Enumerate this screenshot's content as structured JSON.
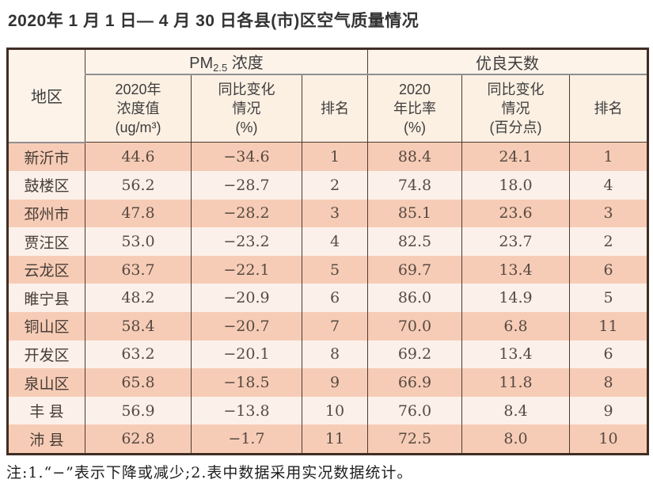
{
  "title": "2020年 1 月 1 日— 4 月 30 日各县(市)区空气质量情况",
  "table": {
    "region_header": "地区",
    "pm_group": {
      "prefix": "PM",
      "sub": "2.5",
      "suffix": " 浓度"
    },
    "good_days_group": "优良天数",
    "sub_headers": {
      "pm_value": "2020年\n浓度值\n(ug/m³)",
      "pm_change": "同比变化\n情况\n(%)",
      "pm_rank": "排名",
      "gd_rate": "2020\n年比率\n(%)",
      "gd_change": "同比变化\n情况\n(百分点)",
      "gd_rank": "排名"
    },
    "rows": [
      {
        "region": "新沂市",
        "pm_value": "44.6",
        "pm_change": "−34.6",
        "pm_rank": "1",
        "gd_rate": "88.4",
        "gd_change": "24.1",
        "gd_rank": "1"
      },
      {
        "region": "鼓楼区",
        "pm_value": "56.2",
        "pm_change": "−28.7",
        "pm_rank": "2",
        "gd_rate": "74.8",
        "gd_change": "18.0",
        "gd_rank": "4"
      },
      {
        "region": "邳州市",
        "pm_value": "47.8",
        "pm_change": "−28.2",
        "pm_rank": "3",
        "gd_rate": "85.1",
        "gd_change": "23.6",
        "gd_rank": "3"
      },
      {
        "region": "贾汪区",
        "pm_value": "53.0",
        "pm_change": "−23.2",
        "pm_rank": "4",
        "gd_rate": "82.5",
        "gd_change": "23.7",
        "gd_rank": "2"
      },
      {
        "region": "云龙区",
        "pm_value": "63.7",
        "pm_change": "−22.1",
        "pm_rank": "5",
        "gd_rate": "69.7",
        "gd_change": "13.4",
        "gd_rank": "6"
      },
      {
        "region": "睢宁县",
        "pm_value": "48.2",
        "pm_change": "−20.9",
        "pm_rank": "6",
        "gd_rate": "86.0",
        "gd_change": "14.9",
        "gd_rank": "5"
      },
      {
        "region": "铜山区",
        "pm_value": "58.4",
        "pm_change": "−20.7",
        "pm_rank": "7",
        "gd_rate": "70.0",
        "gd_change": "6.8",
        "gd_rank": "11"
      },
      {
        "region": "开发区",
        "pm_value": "63.2",
        "pm_change": "−20.1",
        "pm_rank": "8",
        "gd_rate": "69.2",
        "gd_change": "13.4",
        "gd_rank": "6"
      },
      {
        "region": "泉山区",
        "pm_value": "65.8",
        "pm_change": "−18.5",
        "pm_rank": "9",
        "gd_rate": "66.9",
        "gd_change": "11.8",
        "gd_rank": "8"
      },
      {
        "region": "丰 县",
        "pm_value": "56.9",
        "pm_change": "−13.8",
        "pm_rank": "10",
        "gd_rate": "76.0",
        "gd_change": "8.4",
        "gd_rank": "9"
      },
      {
        "region": "沛 县",
        "pm_value": "62.8",
        "pm_change": "−1.7",
        "pm_rank": "11",
        "gd_rate": "72.5",
        "gd_change": "8.0",
        "gd_rank": "10"
      }
    ]
  },
  "note": "注:1.“−”表示下降或减少;2.表中数据采用实况数据统计。",
  "colors": {
    "row_odd_bg": "#f7ccb6",
    "row_even_bg": "#fcf1ea",
    "header_bg": "#fdf3e9",
    "subheader_bg": "#fcf0e3",
    "outer_border": "#402d24",
    "inner_border": "#4c3a30",
    "group_underline": "#8f8f8f",
    "title_text": "#333333",
    "cell_text": "#564a42"
  }
}
